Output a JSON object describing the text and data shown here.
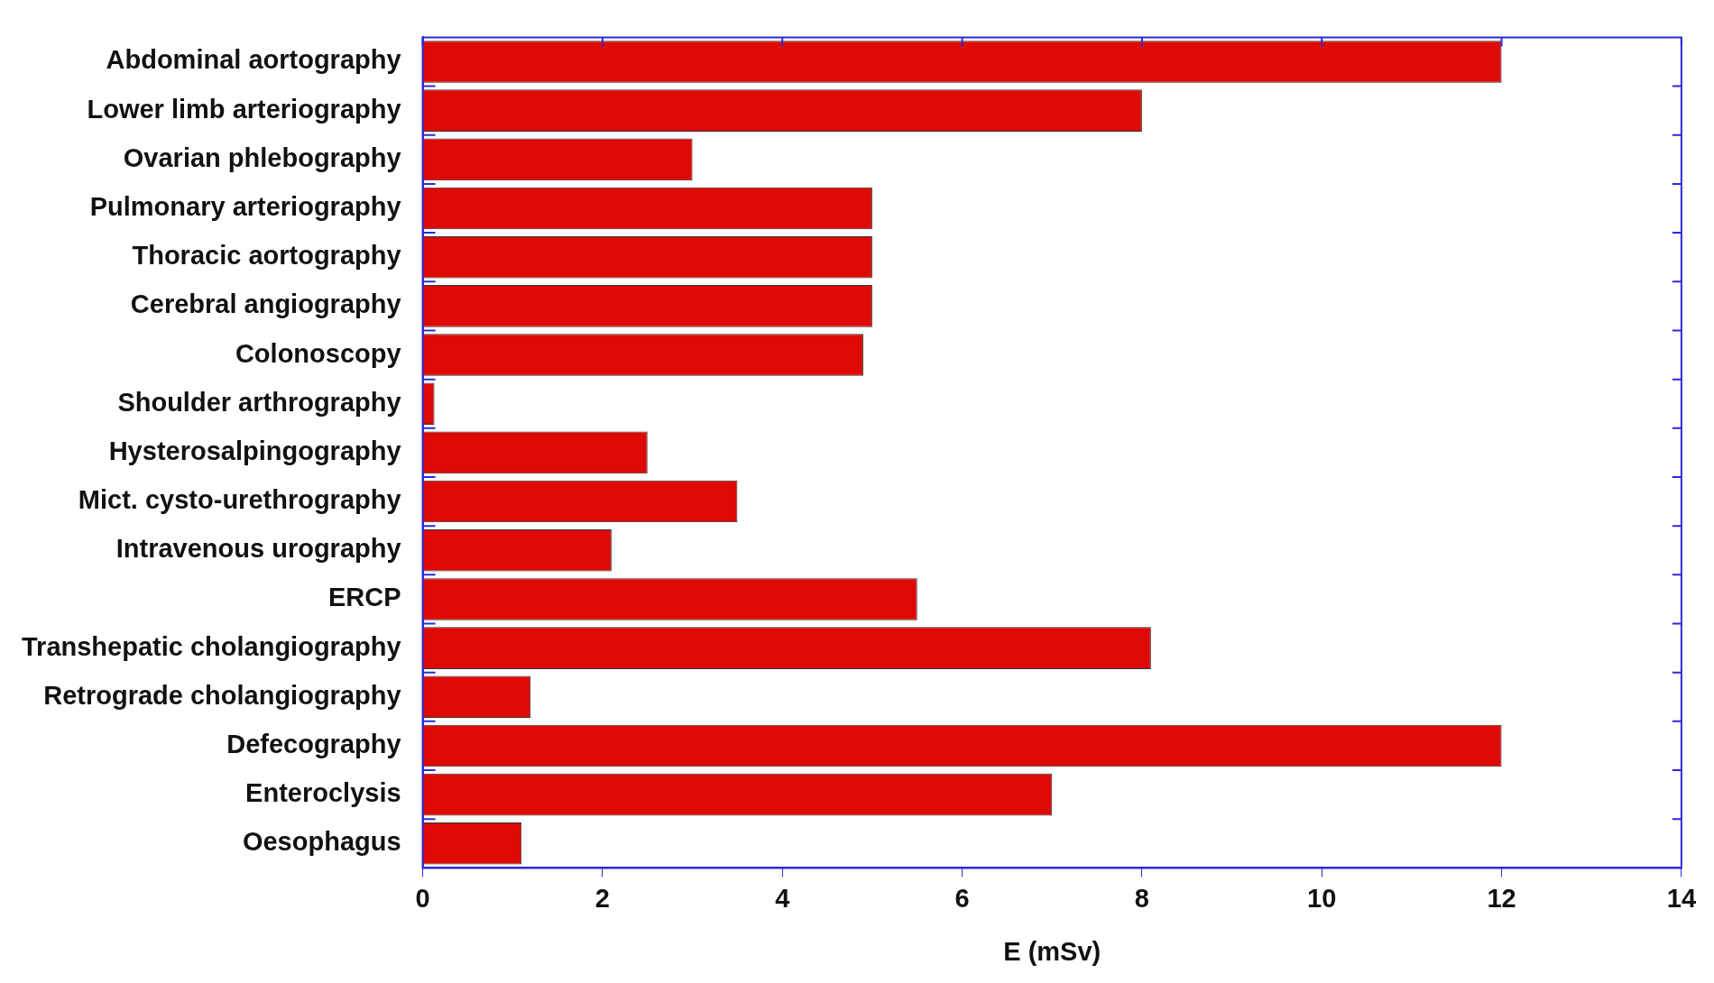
{
  "chart_data": {
    "type": "bar",
    "orientation": "horizontal",
    "xlabel": "E (mSv)",
    "categories": [
      "Abdominal aortography",
      "Lower limb arteriography",
      "Ovarian phlebography",
      "Pulmonary arteriography",
      "Thoracic aortography",
      "Cerebral angiography",
      "Colonoscopy",
      "Shoulder arthrography",
      "Hysterosalpingography",
      "Mict. cysto-urethrography",
      "Intravenous urography",
      "ERCP",
      "Transhepatic cholangiography",
      "Retrograde cholangiography",
      "Defecography",
      "Enteroclysis",
      "Oesophagus"
    ],
    "values": [
      12,
      8,
      3,
      5,
      5,
      5,
      4.9,
      0.13,
      2.5,
      3.5,
      2.1,
      5.5,
      8.1,
      1.2,
      12,
      7,
      1.1
    ],
    "color": "#dd0a06",
    "xlim": [
      0,
      14
    ],
    "xticks": [
      0,
      2,
      4,
      6,
      8,
      10,
      12,
      14
    ],
    "grid": false,
    "legend": false
  }
}
